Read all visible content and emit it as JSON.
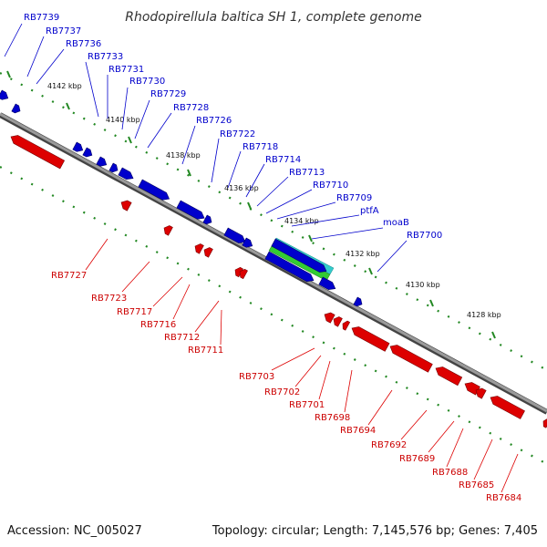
{
  "title": "Rhodopirellula baltica SH 1, complete genome",
  "footer": {
    "accession": "Accession: NC_005027",
    "topology": "Topology: circular; Length: 7,145,576 bp; Genes: 7,405"
  },
  "colors": {
    "forward": "#0000cc",
    "reverse": "#dd0000",
    "backbone": "#888888",
    "ticks": "#228822",
    "highlight_cyan": "#33cccc",
    "highlight_green": "#33cc33"
  },
  "kbp_labels": [
    "4142 kbp",
    "4140 kbp",
    "4138 kbp",
    "4136 kbp",
    "4134 kbp",
    "4132 kbp",
    "4130 kbp",
    "4128 kbp"
  ],
  "top_genes": [
    "RB7739",
    "RB7737",
    "RB7736",
    "RB7733",
    "RB7731",
    "RB7730",
    "RB7729",
    "RB7728",
    "RB7726",
    "RB7722",
    "RB7718",
    "RB7714",
    "RB7713",
    "RB7710",
    "RB7709",
    "ptfA",
    "moaB",
    "RB7700"
  ],
  "bottom_genes": [
    "RB7727",
    "RB7723",
    "RB7717",
    "RB7716",
    "RB7712",
    "RB7711",
    "RB7703",
    "RB7702",
    "RB7701",
    "RB7698",
    "RB7694",
    "RB7692",
    "RB7689",
    "RB7688",
    "RB7685",
    "RB7684"
  ]
}
